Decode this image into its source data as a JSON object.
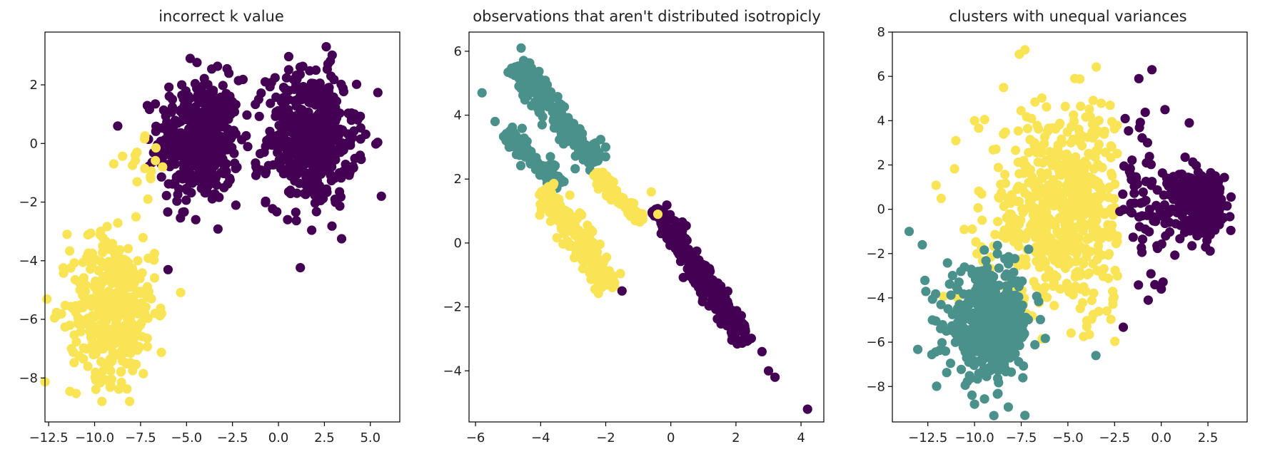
{
  "colors": {
    "purple": "#440154",
    "teal": "#4a918c",
    "yellow": "#f9e455"
  },
  "chart_data": [
    {
      "type": "scatter",
      "title": "incorrect k value",
      "xlabel": "",
      "ylabel": "",
      "xlim": [
        -12.7,
        6.6
      ],
      "ylim": [
        -9.5,
        3.8
      ],
      "xticks": [
        -12.5,
        -10.0,
        -7.5,
        -5.0,
        -2.5,
        0.0,
        2.5,
        5.0
      ],
      "yticks": [
        2,
        0,
        -2,
        -4,
        -6,
        -8
      ],
      "xtick_labels": [
        "−12.5",
        "−10.0",
        "−7.5",
        "−5.0",
        "−2.5",
        "0.0",
        "2.5",
        "5.0"
      ],
      "ytick_labels": [
        "2",
        "0",
        "−2",
        "−4",
        "−6",
        "−8"
      ],
      "grid": false,
      "clusters": [
        {
          "color": "purple",
          "center": [
            -4.3,
            0.1
          ],
          "spread": [
            1.1,
            1.05
          ],
          "n": 450
        },
        {
          "color": "purple",
          "center": [
            1.8,
            0.2
          ],
          "spread": [
            1.2,
            1.15
          ],
          "n": 500
        },
        {
          "color": "yellow",
          "center": [
            -9.0,
            -5.6
          ],
          "spread": [
            1.15,
            1.2
          ],
          "n": 420
        },
        {
          "color": "yellow",
          "center": [
            -7.4,
            -1.0
          ],
          "spread": [
            0.7,
            0.5
          ],
          "n": 14
        }
      ],
      "points": [
        {
          "x": -4.5,
          "y": -2.6,
          "color": "purple"
        },
        {
          "x": 5.6,
          "y": -1.8,
          "color": "purple"
        },
        {
          "x": -4.8,
          "y": 2.9,
          "color": "purple"
        },
        {
          "x": 2.6,
          "y": 3.3,
          "color": "purple"
        },
        {
          "x": 0.5,
          "y": -2.6,
          "color": "purple"
        },
        {
          "x": -11.5,
          "y": -3.1,
          "color": "yellow"
        },
        {
          "x": -9.6,
          "y": -8.8,
          "color": "yellow"
        },
        {
          "x": -7.7,
          "y": -0.3,
          "color": "yellow"
        },
        {
          "x": -6.3,
          "y": -0.8,
          "color": "yellow"
        },
        {
          "x": -7.1,
          "y": -1.9,
          "color": "yellow"
        }
      ]
    },
    {
      "type": "scatter",
      "title": "observations that aren't distributed isotropicly",
      "xlabel": "",
      "ylabel": "",
      "xlim": [
        -6.2,
        4.7
      ],
      "ylim": [
        -5.6,
        6.6
      ],
      "xticks": [
        -6,
        -4,
        -2,
        0,
        2,
        4
      ],
      "yticks": [
        6,
        4,
        2,
        0,
        -2,
        -4
      ],
      "xtick_labels": [
        "−6",
        "−4",
        "−2",
        "0",
        "2",
        "4"
      ],
      "ytick_labels": [
        "6",
        "4",
        "2",
        "0",
        "−2",
        "−4"
      ],
      "grid": false,
      "lines": [
        {
          "color": "teal",
          "from": [
            -4.8,
            5.6
          ],
          "to": [
            -2.2,
            2.4
          ],
          "width": 0.42,
          "n": 220
        },
        {
          "color": "teal",
          "from": [
            -5.0,
            3.5
          ],
          "to": [
            -3.4,
            1.8
          ],
          "width": 0.3,
          "n": 120
        },
        {
          "color": "yellow",
          "from": [
            -3.9,
            1.7
          ],
          "to": [
            -1.8,
            -1.4
          ],
          "width": 0.38,
          "n": 230
        },
        {
          "color": "yellow",
          "from": [
            -2.3,
            2.2
          ],
          "to": [
            -0.9,
            0.7
          ],
          "width": 0.25,
          "n": 80
        },
        {
          "color": "purple",
          "from": [
            -0.4,
            1.1
          ],
          "to": [
            2.3,
            -3.1
          ],
          "width": 0.33,
          "n": 330
        }
      ],
      "points": [
        {
          "x": -5.8,
          "y": 4.7,
          "color": "teal"
        },
        {
          "x": -5.4,
          "y": 3.8,
          "color": "teal"
        },
        {
          "x": -4.6,
          "y": 6.1,
          "color": "teal"
        },
        {
          "x": -0.6,
          "y": 1.6,
          "color": "yellow"
        },
        {
          "x": -0.4,
          "y": 0.9,
          "color": "yellow"
        },
        {
          "x": -1.5,
          "y": -1.5,
          "color": "purple"
        },
        {
          "x": 3.2,
          "y": -4.2,
          "color": "purple"
        },
        {
          "x": 3.0,
          "y": -4.0,
          "color": "purple"
        },
        {
          "x": 2.8,
          "y": -3.4,
          "color": "purple"
        },
        {
          "x": 4.2,
          "y": -5.2,
          "color": "purple"
        }
      ]
    },
    {
      "type": "scatter",
      "title": "clusters with unequal variances",
      "xlabel": "",
      "ylabel": "",
      "xlim": [
        -14.4,
        4.6
      ],
      "ylim": [
        -9.6,
        8.0
      ],
      "xticks": [
        -12.5,
        -10.0,
        -7.5,
        -5.0,
        -2.5,
        0.0,
        2.5
      ],
      "yticks": [
        8,
        6,
        4,
        2,
        0,
        -2,
        -4,
        -6,
        -8
      ],
      "xtick_labels": [
        "−12.5",
        "−10.0",
        "−7.5",
        "−5.0",
        "−2.5",
        "0.0",
        "2.5"
      ],
      "ytick_labels": [
        "8",
        "6",
        "4",
        "2",
        "0",
        "−2",
        "−4",
        "−6",
        "−8"
      ],
      "grid": false,
      "clusters": [
        {
          "color": "yellow",
          "center": [
            -5.0,
            0.0
          ],
          "spread": [
            2.2,
            2.3
          ],
          "n": 600,
          "xmax": -2.3
        },
        {
          "color": "teal",
          "center": [
            -9.2,
            -5.2
          ],
          "spread": [
            1.15,
            1.2
          ],
          "n": 460
        },
        {
          "color": "purple",
          "center": [
            1.9,
            0.4
          ],
          "spread": [
            0.7,
            0.65
          ],
          "n": 320
        },
        {
          "color": "purple",
          "center": [
            -0.9,
            0.2
          ],
          "spread": [
            0.8,
            2.0
          ],
          "n": 70,
          "xmin": -2.3
        }
      ],
      "points": [
        {
          "x": -7.3,
          "y": 7.2,
          "color": "yellow"
        },
        {
          "x": -7.6,
          "y": 7.0,
          "color": "yellow"
        },
        {
          "x": -11.0,
          "y": 3.1,
          "color": "yellow"
        },
        {
          "x": -10.0,
          "y": 4.0,
          "color": "yellow"
        },
        {
          "x": -13.5,
          "y": -1.0,
          "color": "teal"
        },
        {
          "x": -12.8,
          "y": -1.6,
          "color": "teal"
        },
        {
          "x": -10.0,
          "y": -8.8,
          "color": "teal"
        },
        {
          "x": -3.5,
          "y": -6.6,
          "color": "teal"
        },
        {
          "x": -0.5,
          "y": 6.3,
          "color": "purple"
        },
        {
          "x": -1.2,
          "y": 5.9,
          "color": "purple"
        },
        {
          "x": 0.2,
          "y": 4.5,
          "color": "purple"
        },
        {
          "x": 1.5,
          "y": 3.9,
          "color": "purple"
        },
        {
          "x": 0.0,
          "y": -3.6,
          "color": "purple"
        },
        {
          "x": -0.7,
          "y": -4.1,
          "color": "purple"
        }
      ]
    }
  ]
}
